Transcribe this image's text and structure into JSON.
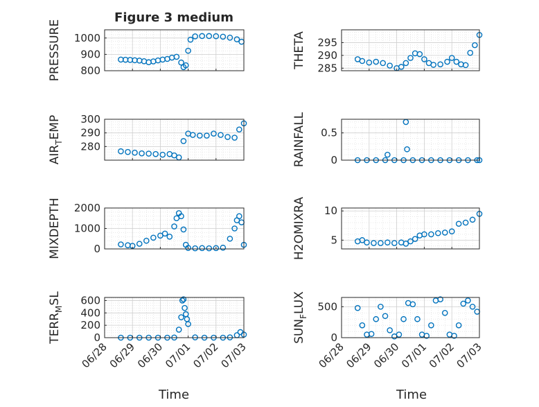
{
  "figure": {
    "title": "Figure 3 medium",
    "xlabel": "Time",
    "x_tick_labels": [
      "06/28",
      "06/29",
      "06/30",
      "07/01",
      "07/02",
      "07/03"
    ],
    "marker_color": "#0072BD"
  },
  "chart_data": [
    {
      "type": "scatter",
      "marker": "circle-open",
      "ylabel": "PRESSURE",
      "xlim": [
        "06/28",
        "07/03"
      ],
      "ylim": [
        800,
        1050
      ],
      "yticks": [
        800,
        900,
        1000
      ],
      "grid": true,
      "x": [
        "06/28 14:00",
        "06/28 18:00",
        "06/28 22:00",
        "06/29 02:00",
        "06/29 06:00",
        "06/29 10:00",
        "06/29 14:00",
        "06/29 18:00",
        "06/29 22:00",
        "06/30 02:00",
        "06/30 06:00",
        "06/30 10:00",
        "06/30 14:00",
        "06/30 18:00",
        "06/30 20:00",
        "06/30 22:00",
        "07/01 00:00",
        "07/01 02:00",
        "07/01 06:00",
        "07/01 12:00",
        "07/01 18:00",
        "07/02 00:00",
        "07/02 06:00",
        "07/02 12:00",
        "07/02 18:00",
        "07/02 22:00"
      ],
      "y": [
        868,
        867,
        866,
        864,
        862,
        858,
        852,
        857,
        863,
        868,
        872,
        880,
        885,
        850,
        822,
        833,
        922,
        990,
        1010,
        1012,
        1012,
        1011,
        1008,
        1002,
        992,
        977
      ]
    },
    {
      "type": "scatter",
      "marker": "circle-open",
      "ylabel": "THETA",
      "xlim": [
        "06/28",
        "07/03"
      ],
      "ylim": [
        284,
        300
      ],
      "yticks": [
        285,
        290,
        295
      ],
      "grid": true,
      "x": [
        "06/28 14:00",
        "06/28 18:00",
        "06/29 00:00",
        "06/29 06:00",
        "06/29 12:00",
        "06/29 18:00",
        "06/30 00:00",
        "06/30 04:00",
        "06/30 08:00",
        "06/30 12:00",
        "06/30 16:00",
        "06/30 20:00",
        "07/01 00:00",
        "07/01 04:00",
        "07/01 08:00",
        "07/01 14:00",
        "07/01 20:00",
        "07/02 00:00",
        "07/02 04:00",
        "07/02 08:00",
        "07/02 12:00",
        "07/02 16:00",
        "07/02 20:00",
        "07/03 00:00"
      ],
      "y": [
        288.5,
        287.8,
        287.2,
        287.5,
        287.0,
        286.0,
        285.0,
        285.5,
        287.0,
        289.0,
        290.8,
        290.5,
        288.5,
        287.0,
        286.3,
        286.5,
        287.5,
        289.0,
        287.5,
        286.5,
        286.2,
        291.0,
        294.0,
        298.0
      ]
    },
    {
      "type": "scatter",
      "marker": "circle-open",
      "ylabel": "AIR_TEMP",
      "xlim": [
        "06/28",
        "07/03"
      ],
      "ylim": [
        270,
        300
      ],
      "yticks": [
        280,
        290,
        300
      ],
      "grid": true,
      "x": [
        "06/28 14:00",
        "06/28 20:00",
        "06/29 02:00",
        "06/29 08:00",
        "06/29 14:00",
        "06/29 20:00",
        "06/30 02:00",
        "06/30 08:00",
        "06/30 12:00",
        "06/30 16:00",
        "06/30 20:00",
        "07/01 00:00",
        "07/01 04:00",
        "07/01 10:00",
        "07/01 16:00",
        "07/01 22:00",
        "07/02 04:00",
        "07/02 10:00",
        "07/02 16:00",
        "07/02 20:00",
        "07/03 00:00"
      ],
      "y": [
        276.5,
        276.0,
        275.5,
        275.0,
        274.8,
        274.5,
        274.0,
        274.5,
        273.5,
        272.0,
        284.0,
        289.5,
        288.5,
        288.0,
        288.0,
        289.5,
        288.5,
        287.0,
        286.5,
        292.5,
        297.0
      ]
    },
    {
      "type": "scatter",
      "marker": "circle-open",
      "ylabel": "RAINFALL",
      "xlim": [
        "06/28",
        "07/03"
      ],
      "ylim": [
        0,
        0.75
      ],
      "yticks": [
        0,
        0.5
      ],
      "grid": true,
      "x": [
        "06/28 14:00",
        "06/28 22:00",
        "06/29 06:00",
        "06/29 14:00",
        "06/29 16:00",
        "06/29 22:00",
        "06/30 06:00",
        "06/30 08:00",
        "06/30 09:00",
        "06/30 14:00",
        "06/30 22:00",
        "07/01 06:00",
        "07/01 14:00",
        "07/01 22:00",
        "07/02 06:00",
        "07/02 14:00",
        "07/02 22:00",
        "07/03 00:00"
      ],
      "y": [
        0,
        0,
        0,
        0,
        0.1,
        0,
        0,
        0.7,
        0.2,
        0,
        0,
        0,
        0,
        0,
        0,
        0,
        0,
        0
      ]
    },
    {
      "type": "scatter",
      "marker": "circle-open",
      "ylabel": "MIXDEPTH",
      "xlim": [
        "06/28",
        "07/03"
      ],
      "ylim": [
        0,
        2000
      ],
      "yticks": [
        0,
        1000,
        2000
      ],
      "grid": true,
      "x": [
        "06/28 14:00",
        "06/28 20:00",
        "06/29 00:00",
        "06/29 06:00",
        "06/29 12:00",
        "06/29 18:00",
        "06/30 00:00",
        "06/30 04:00",
        "06/30 08:00",
        "06/30 12:00",
        "06/30 14:00",
        "06/30 16:00",
        "06/30 18:00",
        "06/30 20:00",
        "06/30 22:00",
        "07/01 00:00",
        "07/01 06:00",
        "07/01 12:00",
        "07/01 18:00",
        "07/02 00:00",
        "07/02 06:00",
        "07/02 12:00",
        "07/02 16:00",
        "07/02 18:00",
        "07/02 20:00",
        "07/02 22:00",
        "07/03 00:00"
      ],
      "y": [
        220,
        180,
        150,
        250,
        400,
        550,
        650,
        750,
        600,
        1100,
        1500,
        1750,
        1600,
        950,
        200,
        50,
        30,
        40,
        30,
        40,
        60,
        500,
        1000,
        1400,
        1600,
        1300,
        200
      ]
    },
    {
      "type": "scatter",
      "marker": "circle-open",
      "ylabel": "H2OMIXRA",
      "xlim": [
        "06/28",
        "07/03"
      ],
      "ylim": [
        3.5,
        10.5
      ],
      "yticks": [
        5,
        10
      ],
      "grid": true,
      "x": [
        "06/28 14:00",
        "06/28 18:00",
        "06/28 22:00",
        "06/29 04:00",
        "06/29 10:00",
        "06/29 16:00",
        "06/29 22:00",
        "06/30 04:00",
        "06/30 08:00",
        "06/30 12:00",
        "06/30 16:00",
        "06/30 20:00",
        "07/01 00:00",
        "07/01 06:00",
        "07/01 12:00",
        "07/01 18:00",
        "07/02 00:00",
        "07/02 06:00",
        "07/02 12:00",
        "07/02 18:00",
        "07/03 00:00"
      ],
      "y": [
        4.8,
        5.0,
        4.6,
        4.5,
        4.5,
        4.6,
        4.5,
        4.6,
        4.4,
        4.8,
        5.2,
        5.8,
        6.0,
        6.0,
        6.2,
        6.3,
        6.5,
        7.8,
        8.0,
        8.5,
        9.5
      ]
    },
    {
      "type": "scatter",
      "marker": "circle-open",
      "ylabel": "TERR_MSL",
      "xlim": [
        "06/28",
        "07/03"
      ],
      "ylim": [
        0,
        650
      ],
      "yticks": [
        0,
        200,
        400,
        600
      ],
      "grid": true,
      "x": [
        "06/28 14:00",
        "06/28 22:00",
        "06/29 06:00",
        "06/29 14:00",
        "06/29 22:00",
        "06/30 06:00",
        "06/30 12:00",
        "06/30 16:00",
        "06/30 18:00",
        "06/30 19:00",
        "06/30 20:00",
        "06/30 21:00",
        "06/30 22:00",
        "06/30 23:00",
        "07/01 00:00",
        "07/01 06:00",
        "07/01 14:00",
        "07/01 22:00",
        "07/02 06:00",
        "07/02 12:00",
        "07/02 18:00",
        "07/02 21:00",
        "07/03 00:00"
      ],
      "y": [
        0,
        0,
        0,
        0,
        0,
        0,
        2,
        130,
        330,
        600,
        620,
        480,
        380,
        300,
        220,
        5,
        0,
        0,
        0,
        5,
        40,
        90,
        50
      ]
    },
    {
      "type": "scatter",
      "marker": "circle-open",
      "ylabel": "SUN_FLUX",
      "xlim": [
        "06/28",
        "07/03"
      ],
      "ylim": [
        0,
        650
      ],
      "yticks": [
        0,
        500
      ],
      "grid": true,
      "x": [
        "06/28 14:00",
        "06/28 18:00",
        "06/28 22:00",
        "06/29 02:00",
        "06/29 06:00",
        "06/29 10:00",
        "06/29 14:00",
        "06/29 18:00",
        "06/29 22:00",
        "06/30 02:00",
        "06/30 06:00",
        "06/30 10:00",
        "06/30 14:00",
        "06/30 18:00",
        "06/30 22:00",
        "07/01 02:00",
        "07/01 06:00",
        "07/01 10:00",
        "07/01 14:00",
        "07/01 18:00",
        "07/01 22:00",
        "07/02 02:00",
        "07/02 06:00",
        "07/02 10:00",
        "07/02 14:00",
        "07/02 18:00",
        "07/02 22:00"
      ],
      "y": [
        480,
        200,
        50,
        60,
        300,
        500,
        350,
        120,
        20,
        50,
        300,
        560,
        540,
        300,
        50,
        30,
        200,
        600,
        620,
        400,
        50,
        30,
        200,
        550,
        600,
        500,
        420
      ]
    }
  ]
}
